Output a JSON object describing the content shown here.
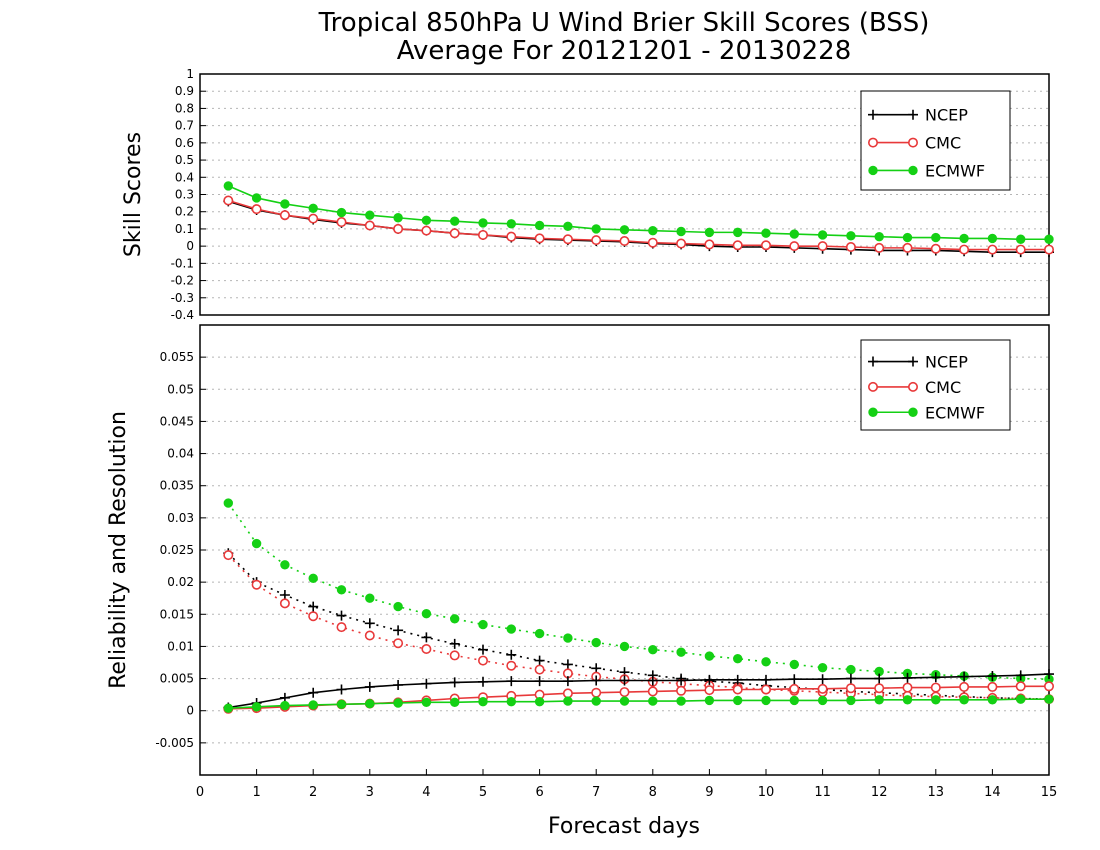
{
  "title_line1": "Tropical 850hPa U Wind Brier Skill Scores (BSS)",
  "title_line2": "Average For 20121201 - 20130228",
  "xlabel": "Forecast days",
  "colors": {
    "NCEP": "#000000",
    "CMC": "#e8393a",
    "ECMWF": "#14d014"
  },
  "chart_data": [
    {
      "type": "line",
      "ylabel": "Skill Scores",
      "xlim": [
        0,
        15
      ],
      "ylim": [
        -0.4,
        1
      ],
      "yticks": [
        "1",
        "0.9",
        "0.8",
        "0.7",
        "0.6",
        "0.5",
        "0.4",
        "0.3",
        "0.2",
        "0.1",
        "0",
        "-0.1",
        "-0.2",
        "-0.3",
        "-0.4"
      ],
      "xticks": [
        "0",
        "1",
        "2",
        "3",
        "4",
        "5",
        "6",
        "7",
        "8",
        "9",
        "10",
        "11",
        "12",
        "13",
        "14",
        "15"
      ],
      "grid": true,
      "legend_position": "top-right",
      "x": [
        0.5,
        1,
        1.5,
        2,
        2.5,
        3,
        3.5,
        4,
        4.5,
        5,
        5.5,
        6,
        6.5,
        7,
        7.5,
        8,
        8.5,
        9,
        9.5,
        10,
        10.5,
        11,
        11.5,
        12,
        12.5,
        13,
        13.5,
        14,
        14.5,
        15
      ],
      "series": [
        {
          "name": "NCEP",
          "marker": "plus",
          "style": "solid",
          "values": [
            0.26,
            0.21,
            0.18,
            0.155,
            0.135,
            0.12,
            0.1,
            0.09,
            0.075,
            0.065,
            0.05,
            0.04,
            0.035,
            0.03,
            0.025,
            0.015,
            0.01,
            0.0,
            -0.005,
            -0.005,
            -0.01,
            -0.015,
            -0.02,
            -0.025,
            -0.025,
            -0.025,
            -0.03,
            -0.035,
            -0.035,
            -0.035
          ]
        },
        {
          "name": "CMC",
          "marker": "circle-open",
          "style": "solid",
          "values": [
            0.265,
            0.215,
            0.18,
            0.16,
            0.14,
            0.12,
            0.1,
            0.09,
            0.075,
            0.065,
            0.055,
            0.045,
            0.04,
            0.035,
            0.03,
            0.02,
            0.015,
            0.01,
            0.005,
            0.005,
            0.0,
            0.0,
            -0.005,
            -0.01,
            -0.01,
            -0.015,
            -0.02,
            -0.02,
            -0.02,
            -0.02
          ]
        },
        {
          "name": "ECMWF",
          "marker": "circle-filled",
          "style": "solid",
          "values": [
            0.35,
            0.28,
            0.245,
            0.22,
            0.195,
            0.18,
            0.165,
            0.15,
            0.145,
            0.135,
            0.13,
            0.12,
            0.115,
            0.1,
            0.095,
            0.09,
            0.085,
            0.08,
            0.08,
            0.075,
            0.07,
            0.065,
            0.06,
            0.055,
            0.05,
            0.05,
            0.045,
            0.045,
            0.04,
            0.04
          ]
        }
      ]
    },
    {
      "type": "line",
      "ylabel": "Reliability and Resolution",
      "xlim": [
        0,
        15
      ],
      "ylim": [
        -0.01,
        0.06
      ],
      "yticks": [
        "0.055",
        "0.05",
        "0.045",
        "0.04",
        "0.035",
        "0.03",
        "0.025",
        "0.02",
        "0.015",
        "0.01",
        "0.005",
        "0",
        "-0.005"
      ],
      "xticks": [
        "0",
        "1",
        "2",
        "3",
        "4",
        "5",
        "6",
        "7",
        "8",
        "9",
        "10",
        "11",
        "12",
        "13",
        "14",
        "15"
      ],
      "grid": true,
      "legend_position": "top-right",
      "x": [
        0.5,
        1,
        1.5,
        2,
        2.5,
        3,
        3.5,
        4,
        4.5,
        5,
        5.5,
        6,
        6.5,
        7,
        7.5,
        8,
        8.5,
        9,
        9.5,
        10,
        10.5,
        11,
        11.5,
        12,
        12.5,
        13,
        13.5,
        14,
        14.5,
        15
      ],
      "series": [
        {
          "name": "NCEP",
          "marker": "plus",
          "style": "dotted",
          "values": [
            0.0245,
            0.02,
            0.018,
            0.0162,
            0.0148,
            0.0136,
            0.0125,
            0.0114,
            0.0104,
            0.0095,
            0.0087,
            0.0078,
            0.0072,
            0.0066,
            0.006,
            0.0055,
            0.005,
            0.0046,
            0.0043,
            0.0039,
            0.0036,
            0.0033,
            0.003,
            0.0028,
            0.0026,
            0.0024,
            0.0022,
            0.002,
            0.0019,
            0.0018
          ]
        },
        {
          "name": "CMC",
          "marker": "circle-open",
          "style": "dotted",
          "values": [
            0.0242,
            0.0196,
            0.0167,
            0.0147,
            0.013,
            0.0117,
            0.0105,
            0.0096,
            0.0086,
            0.0078,
            0.007,
            0.0064,
            0.0058,
            0.0053,
            0.0049,
            0.0045,
            0.0042,
            0.0039,
            0.0036,
            0.0033,
            0.0031,
            0.0029,
            0.0027,
            0.0025,
            0.0023,
            0.0022,
            0.0021,
            0.002,
            0.0019,
            0.0018
          ]
        },
        {
          "name": "ECMWF",
          "marker": "circle-filled",
          "style": "dotted",
          "values": [
            0.0323,
            0.026,
            0.0227,
            0.0206,
            0.0188,
            0.0175,
            0.0162,
            0.0151,
            0.0143,
            0.0134,
            0.0127,
            0.012,
            0.0113,
            0.0106,
            0.01,
            0.0095,
            0.0091,
            0.0085,
            0.0081,
            0.0076,
            0.0072,
            0.0067,
            0.0064,
            0.0061,
            0.0058,
            0.0056,
            0.0054,
            0.0052,
            0.005,
            0.0049
          ]
        },
        {
          "name": "NCEP",
          "marker": "plus",
          "style": "solid",
          "values": [
            0.0005,
            0.0012,
            0.002,
            0.0028,
            0.0033,
            0.0037,
            0.004,
            0.0042,
            0.0044,
            0.0045,
            0.0046,
            0.0046,
            0.0046,
            0.0047,
            0.0047,
            0.0047,
            0.0047,
            0.0048,
            0.0048,
            0.0048,
            0.0049,
            0.0049,
            0.005,
            0.005,
            0.0051,
            0.0052,
            0.0053,
            0.0054,
            0.0055,
            0.0057
          ]
        },
        {
          "name": "CMC",
          "marker": "circle-open",
          "style": "solid",
          "values": [
            0.0003,
            0.0004,
            0.0006,
            0.0008,
            0.001,
            0.0011,
            0.0013,
            0.0016,
            0.0019,
            0.0021,
            0.0023,
            0.0025,
            0.0027,
            0.0028,
            0.0029,
            0.003,
            0.0031,
            0.0032,
            0.0033,
            0.0033,
            0.0034,
            0.0034,
            0.0035,
            0.0035,
            0.0036,
            0.0036,
            0.0037,
            0.0037,
            0.0038,
            0.0038
          ]
        },
        {
          "name": "ECMWF",
          "marker": "circle-filled",
          "style": "solid",
          "values": [
            0.0004,
            0.0006,
            0.0008,
            0.0009,
            0.001,
            0.0011,
            0.0012,
            0.0013,
            0.0013,
            0.0014,
            0.0014,
            0.0014,
            0.0015,
            0.0015,
            0.0015,
            0.0015,
            0.0015,
            0.0016,
            0.0016,
            0.0016,
            0.0016,
            0.0016,
            0.0016,
            0.0017,
            0.0017,
            0.0017,
            0.0017,
            0.0017,
            0.0018,
            0.0018
          ]
        }
      ]
    }
  ],
  "legends": [
    {
      "items": [
        "NCEP",
        "CMC",
        "ECMWF"
      ]
    },
    {
      "items": [
        "NCEP",
        "CMC",
        "ECMWF"
      ]
    }
  ]
}
